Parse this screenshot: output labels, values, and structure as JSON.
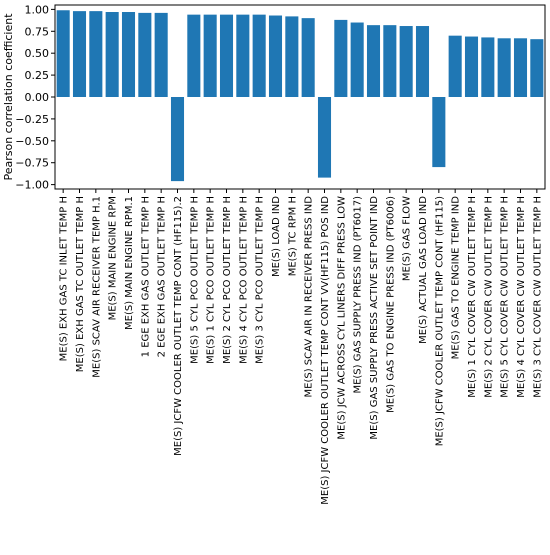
{
  "chart_data": {
    "type": "bar",
    "title": "",
    "xlabel": "",
    "ylabel": "Pearson correlation coefficient",
    "ylim": [
      -1.05,
      1.05
    ],
    "yticks": [
      -1.0,
      -0.75,
      -0.5,
      -0.25,
      0.0,
      0.25,
      0.5,
      0.75,
      1.0
    ],
    "ytick_labels": [
      "−1.00",
      "−0.75",
      "−0.50",
      "−0.25",
      "0.00",
      "0.25",
      "0.50",
      "0.75",
      "1.00"
    ],
    "grid": false,
    "bar_color": "#1f77b4",
    "categories": [
      "ME(S) EXH GAS TC INLET TEMP H",
      "ME(S) EXH GAS TC OUTLET TEMP H",
      "ME(S) SCAV AIR RECEIVER TEMP H.1",
      "ME(S) MAIN ENGINE RPM",
      "ME(S) MAIN ENGINE RPM.1",
      "1 EGE EXH GAS OUTLET TEMP H",
      "2 EGE EXH GAS OUTLET TEMP H",
      "ME(S) JCFW COOLER OUTLET TEMP CONT (HF115).2",
      "ME(S) 5 CYL PCO OUTLET TEMP H",
      "ME(S) 1 CYL PCO OUTLET TEMP H",
      "ME(S) 2 CYL PCO OUTLET TEMP H",
      "ME(S) 4 CYL PCO OUTLET TEMP H",
      "ME(S) 3 CYL PCO OUTLET TEMP H",
      "ME(S) LOAD IND",
      "ME(S) TC RPM H",
      "ME(S) SCAV AIR IN RECEIVER PRESS IND",
      "ME(S) JCFW COOLER OUTLET TEMP CONT VV(HF115) POS IND",
      "ME(S) JCW ACROSS CYL LINERS DIFF PRESS LOW",
      "ME(S) GAS SUPPLY PRESS IND (PT6017)",
      "ME(S) GAS SUPPLY PRESS ACTIVE SET POINT IND",
      "ME(S) GAS TO ENGINE PRESS IND (PT6006)",
      "ME(S) GAS FLOW",
      "ME(S) ACTUAL GAS LOAD IND",
      "ME(S) JCFW COOLER OUTLET TEMP CONT (HF115)",
      "ME(S) GAS TO ENGINE TEMP IND",
      "ME(S) 1 CYL COVER CW OUTLET TEMP H",
      "ME(S) 2 CYL COVER CW OUTLET TEMP H",
      "ME(S) 5 CYL COVER CW OUTLET TEMP H",
      "ME(S) 4 CYL COVER CW OUTLET TEMP H",
      "ME(S) 3 CYL COVER CW OUTLET TEMP H"
    ],
    "values": [
      0.99,
      0.98,
      0.98,
      0.97,
      0.97,
      0.96,
      0.96,
      -0.96,
      0.94,
      0.94,
      0.94,
      0.94,
      0.94,
      0.93,
      0.92,
      0.9,
      -0.92,
      0.88,
      0.85,
      0.82,
      0.82,
      0.81,
      0.81,
      -0.8,
      0.7,
      0.69,
      0.68,
      0.67,
      0.67,
      0.66
    ]
  }
}
